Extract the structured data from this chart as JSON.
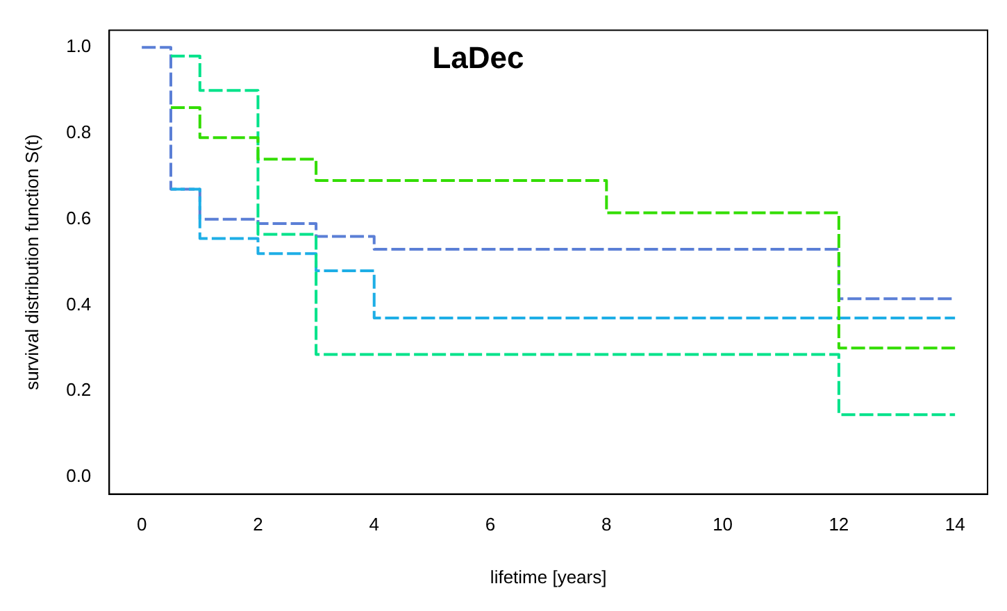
{
  "chart_data": {
    "type": "step",
    "title": "LaDec",
    "xlabel": "lifetime [years]",
    "ylabel": "survival distribution function S(t)",
    "xlim": [
      -0.56,
      14.56
    ],
    "xticks": [
      0,
      2,
      4,
      6,
      8,
      10,
      12,
      14
    ],
    "ylim": [
      -0.04,
      1.04
    ],
    "yticks": [
      {
        "value": 0,
        "label": "0.0"
      },
      {
        "value": 0.2,
        "label": "0.2"
      },
      {
        "value": 0.4,
        "label": "0.4"
      },
      {
        "value": 0.6,
        "label": "0.6"
      },
      {
        "value": 0.8,
        "label": "0.8"
      },
      {
        "value": 1,
        "label": "1.0"
      }
    ],
    "grid": false,
    "legend": false,
    "line_style": "dashed",
    "series": [
      {
        "color": "#5b7fd6",
        "x": [
          0,
          0.5,
          1,
          2,
          3,
          4,
          12,
          14
        ],
        "values": [
          1.0,
          0.67,
          0.6,
          0.59,
          0.56,
          0.53,
          0.415,
          0.415
        ]
      },
      {
        "color": "#1eaee6",
        "x": [
          0.5,
          1,
          2,
          3,
          4,
          14
        ],
        "values": [
          0.67,
          0.555,
          0.52,
          0.48,
          0.37,
          0.37
        ]
      },
      {
        "color": "#00e28a",
        "x": [
          0.5,
          1,
          2,
          3,
          12,
          14
        ],
        "values": [
          0.98,
          0.9,
          0.565,
          0.285,
          0.145,
          0.145
        ]
      },
      {
        "color": "#33dd00",
        "x": [
          0.5,
          1,
          2,
          3,
          8,
          12,
          14
        ],
        "values": [
          0.86,
          0.79,
          0.74,
          0.69,
          0.615,
          0.3,
          0.3
        ]
      }
    ]
  }
}
